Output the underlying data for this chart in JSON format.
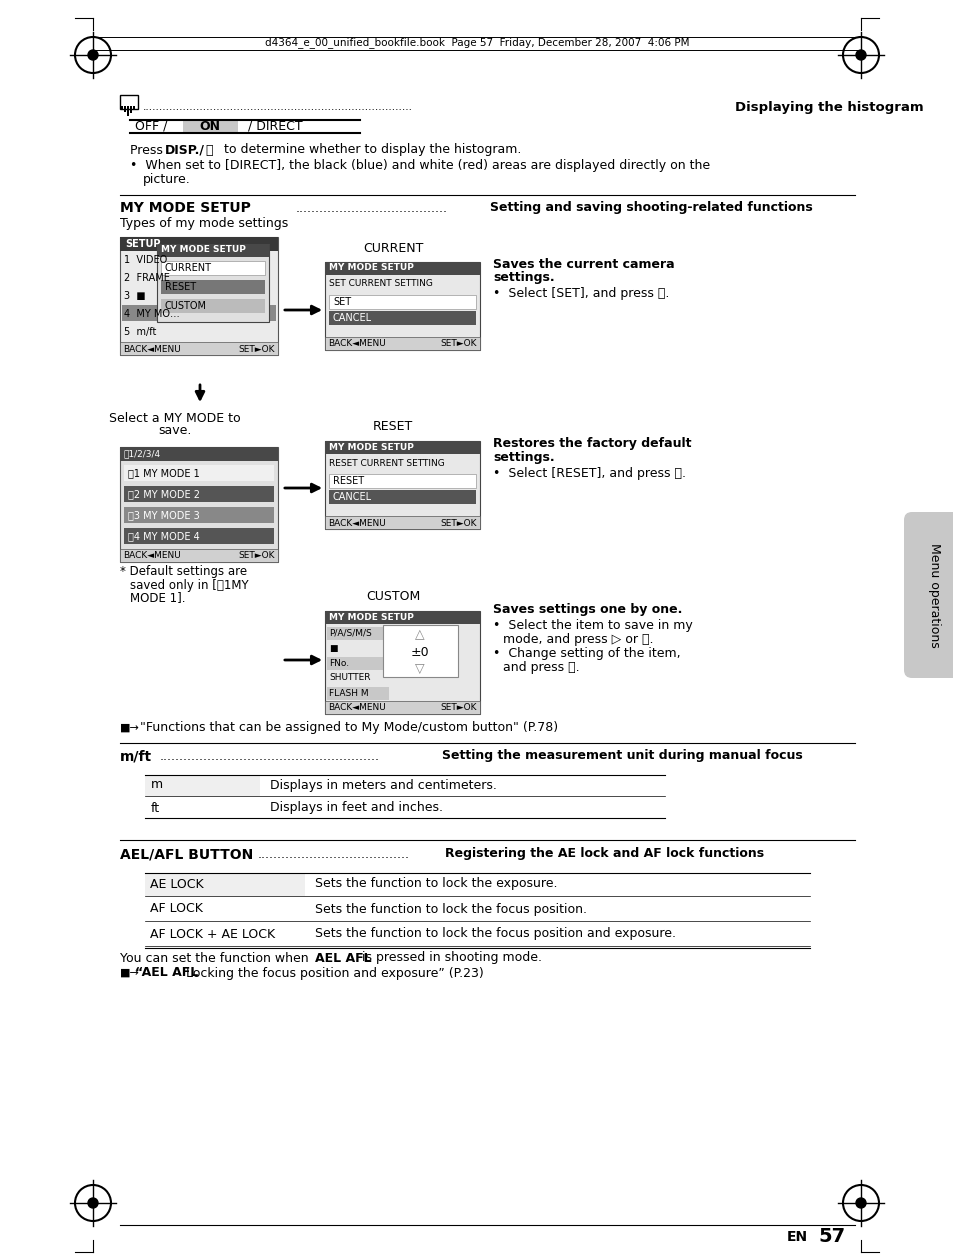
{
  "title_text": "d4364_e_00_unified_bookfile.book  Page 57  Friday, December 28, 2007  4:06 PM",
  "bg_color": "#ffffff",
  "section1_icon_label": "Displaying the histogram",
  "section2_title": "MY MODE SETUP",
  "section2_subtitle": "Setting and saving shooting-related functions",
  "current_label": "CURRENT",
  "current_desc1": "Saves the current camera",
  "current_desc2": "settings.",
  "current_bullet": "Select [SET], and press Ⓚ.",
  "reset_label": "RESET",
  "reset_desc1": "Restores the factory default",
  "reset_desc2": "settings.",
  "reset_bullet": "Select [RESET], and press Ⓚ.",
  "custom_label": "CUSTOM",
  "custom_desc1": "Saves settings one by one.",
  "custom_bullet1_a": "Select the item to save in my",
  "custom_bullet1_b": "mode, and press ▷ or Ⓚ.",
  "custom_bullet2_a": "Change setting of the item,",
  "custom_bullet2_b": "and press Ⓚ.",
  "select_label_a": "Select a MY MODE to",
  "select_label_b": "save.",
  "footnote": "\"Functions that can be assigned to My Mode/custom button\" (P.78)",
  "section3_title": "m/ft",
  "section3_subtitle": "Setting the measurement unit during manual focus",
  "m_label": "m",
  "m_desc": "Displays in meters and centimeters.",
  "ft_label": "ft",
  "ft_desc": "Displays in feet and inches.",
  "section4_title": "AEL/AFL BUTTON",
  "section4_subtitle": "Registering the AE lock and AF lock functions",
  "ael_label": "AE LOCK",
  "ael_desc": "Sets the function to lock the exposure.",
  "afl_label": "AF LOCK",
  "afl_desc": "Sets the function to lock the focus position.",
  "aflael_label": "AF LOCK + AE LOCK",
  "aflael_desc": "Sets the function to lock the focus position and exposure.",
  "menu_ops_label": "Menu operations",
  "dark_header": "#404040",
  "med_gray": "#808080",
  "light_gray": "#d8d8d8",
  "sidebar_gray": "#c8c8c8"
}
